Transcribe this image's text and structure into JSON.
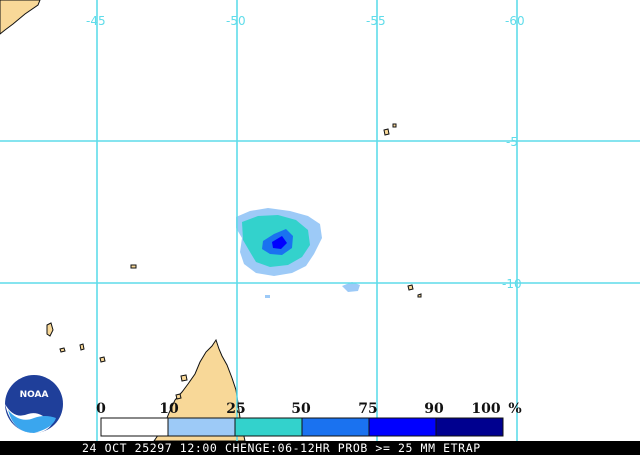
{
  "map": {
    "longitude_labels": [
      "-45",
      "-50",
      "-55",
      "-60"
    ],
    "latitude_labels": [
      "-5",
      "-10"
    ],
    "colors": {
      "background": "#ffffff",
      "graticule": "#5fdcea",
      "land": "#f8d898",
      "coastline": "#111111"
    },
    "precip_probability_areas": [
      {
        "location": "central",
        "max_category": "75-90"
      },
      {
        "location": "small patch east",
        "max_category": "10-25"
      }
    ]
  },
  "logo": {
    "text": "NOAA",
    "icon": "noaa-logo-icon"
  },
  "legend": {
    "values": [
      "0",
      "10",
      "25",
      "50",
      "75",
      "90",
      "100",
      "%"
    ],
    "bins": [
      {
        "range": "0-10",
        "color": "#ffffff"
      },
      {
        "range": "10-25",
        "color": "#9dcaf7"
      },
      {
        "range": "25-50",
        "color": "#33d2cc"
      },
      {
        "range": "50-75",
        "color": "#1a72f0"
      },
      {
        "range": "75-90",
        "color": "#0000ff"
      },
      {
        "range": "90-100",
        "color": "#00008f"
      }
    ]
  },
  "status_bar": {
    "text": "24 OCT 25297 12:00 CHENGE:06-12HR PROB >= 25 MM ETRAP"
  }
}
